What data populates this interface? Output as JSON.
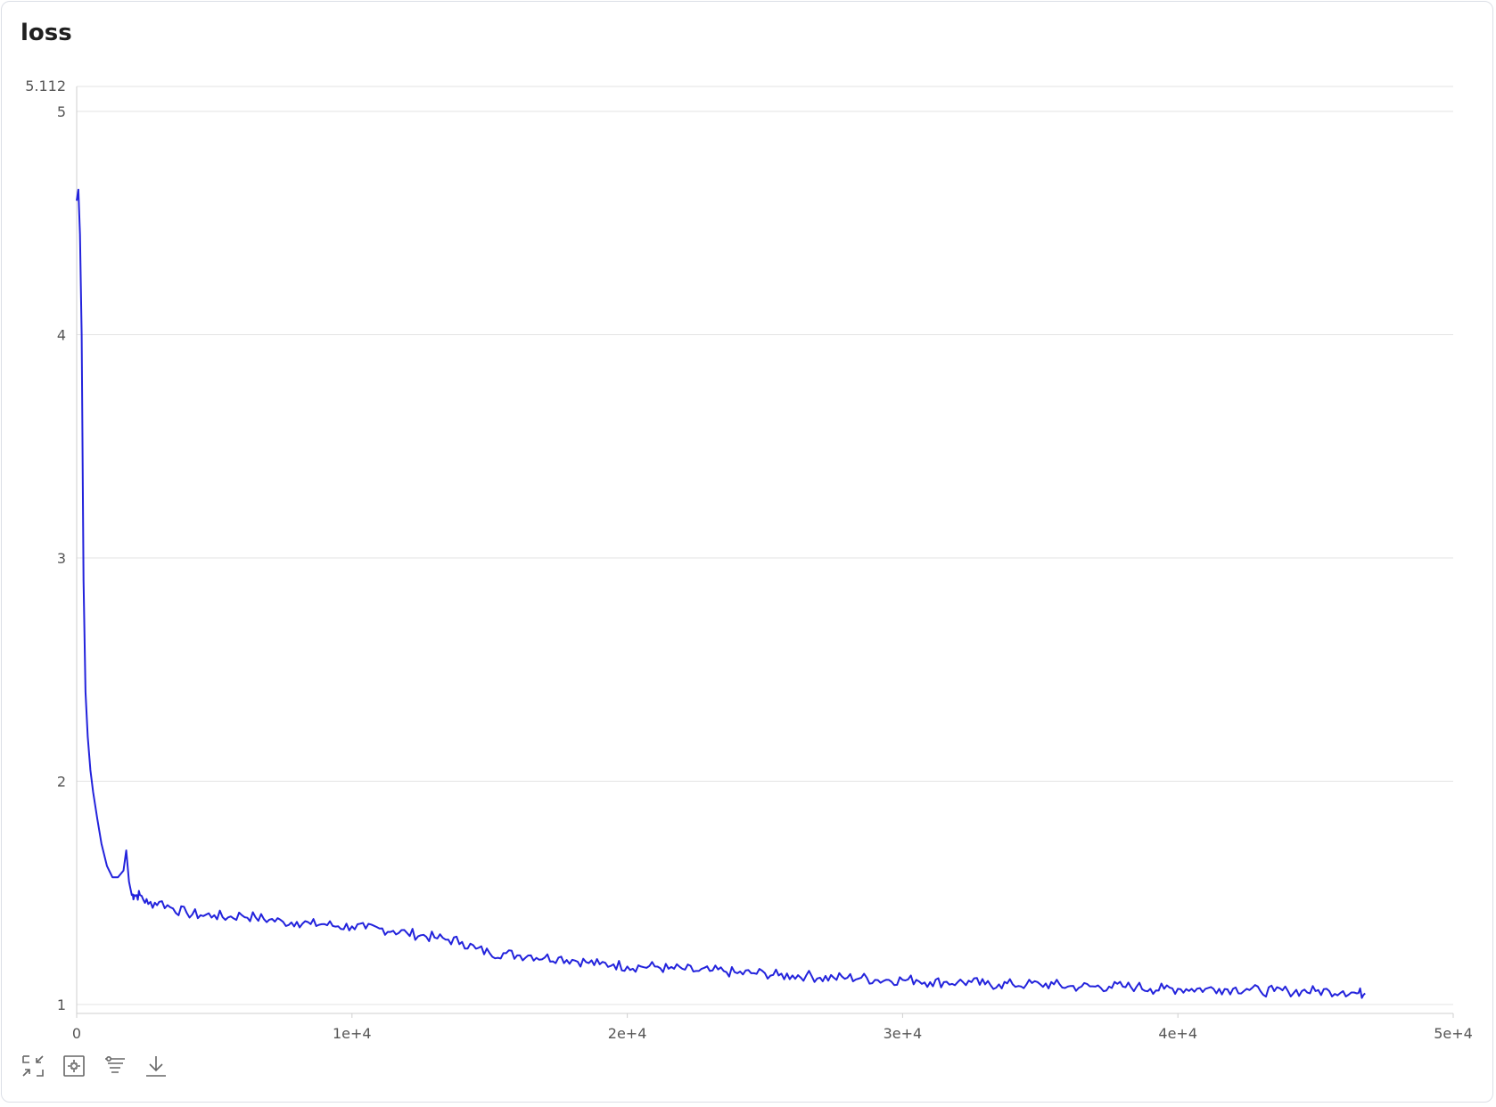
{
  "chart_data": {
    "type": "line",
    "title": "loss",
    "xlabel": "",
    "ylabel": "",
    "xlim": [
      0,
      50000
    ],
    "ylim": [
      0.96,
      5.112
    ],
    "y_max_label": "5.112",
    "x_ticks": [
      0,
      10000,
      20000,
      30000,
      40000,
      50000
    ],
    "x_tick_labels": [
      "0",
      "1e+4",
      "2e+4",
      "3e+4",
      "4e+4",
      "5e+4"
    ],
    "y_ticks": [
      1,
      2,
      3,
      4,
      5
    ],
    "y_tick_labels": [
      "1",
      "2",
      "3",
      "4",
      "5"
    ],
    "grid": "horizontal",
    "series": [
      {
        "color": "#2323dc",
        "x": [
          0,
          60,
          120,
          180,
          250,
          320,
          400,
          500,
          600,
          750,
          900,
          1100,
          1300,
          1500,
          1700,
          1800,
          1900,
          2000,
          2100,
          2300,
          2600,
          3000,
          3500,
          4000,
          4500,
          5000,
          5500,
          6000,
          6500,
          7000,
          7500,
          8000,
          8500,
          9000,
          9500,
          10000,
          10500,
          11000,
          11500,
          12000,
          12500,
          13000,
          13500,
          14000,
          14500,
          15000,
          15500,
          16000,
          16500,
          17000,
          17500,
          18000,
          18500,
          19000,
          19500,
          20000,
          20500,
          21000,
          21500,
          22000,
          22500,
          23000,
          23500,
          24000,
          24500,
          25000,
          25500,
          26000,
          26500,
          27000,
          27500,
          28000,
          28500,
          29000,
          29500,
          30000,
          30500,
          31000,
          31500,
          32000,
          32500,
          33000,
          33500,
          34000,
          34500,
          35000,
          35500,
          36000,
          36500,
          37000,
          37500,
          38000,
          38500,
          39000,
          39500,
          40000,
          40500,
          41000,
          41500,
          42000,
          42500,
          43000,
          43500,
          44000,
          44500,
          45000,
          45500,
          46000,
          46500,
          46800
        ],
        "y": [
          4.6,
          4.65,
          4.45,
          4.0,
          2.9,
          2.4,
          2.2,
          2.05,
          1.95,
          1.83,
          1.72,
          1.62,
          1.57,
          1.57,
          1.6,
          1.69,
          1.55,
          1.49,
          1.49,
          1.49,
          1.45,
          1.46,
          1.43,
          1.41,
          1.4,
          1.4,
          1.39,
          1.4,
          1.39,
          1.38,
          1.37,
          1.37,
          1.36,
          1.36,
          1.35,
          1.35,
          1.34,
          1.34,
          1.33,
          1.32,
          1.31,
          1.3,
          1.29,
          1.28,
          1.25,
          1.23,
          1.23,
          1.22,
          1.22,
          1.21,
          1.21,
          1.2,
          1.19,
          1.18,
          1.18,
          1.17,
          1.17,
          1.17,
          1.16,
          1.16,
          1.15,
          1.15,
          1.15,
          1.14,
          1.14,
          1.14,
          1.13,
          1.13,
          1.13,
          1.12,
          1.12,
          1.12,
          1.12,
          1.11,
          1.11,
          1.11,
          1.11,
          1.1,
          1.1,
          1.1,
          1.1,
          1.09,
          1.09,
          1.09,
          1.09,
          1.09,
          1.09,
          1.08,
          1.08,
          1.08,
          1.08,
          1.08,
          1.08,
          1.07,
          1.07,
          1.07,
          1.07,
          1.07,
          1.07,
          1.07,
          1.07,
          1.06,
          1.06,
          1.06,
          1.06,
          1.06,
          1.06,
          1.06,
          1.05,
          1.05
        ]
      }
    ]
  },
  "toolbar": {
    "buttons": [
      {
        "icon": "collapse-icon"
      },
      {
        "icon": "fit-screen-icon"
      },
      {
        "icon": "filter-icon"
      },
      {
        "icon": "download-icon"
      }
    ]
  }
}
